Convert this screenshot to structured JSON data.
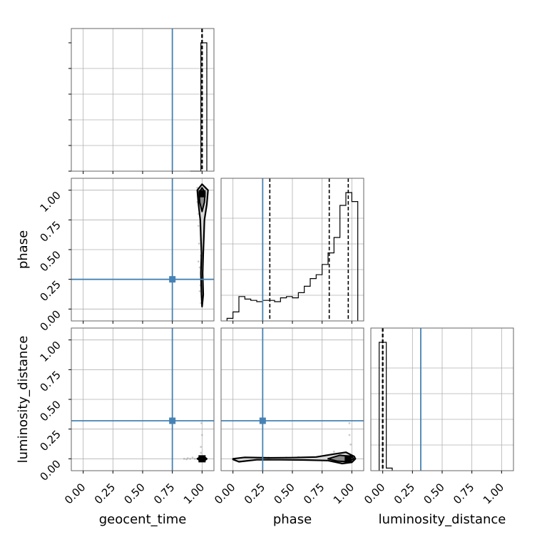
{
  "chart_data": {
    "type": "corner",
    "parameters": [
      "geocent_time",
      "phase",
      "luminosity_distance"
    ],
    "axis_labels": {
      "x": [
        "geocent_time",
        "phase",
        "luminosity_distance"
      ],
      "y": [
        "",
        "phase",
        "luminosity_distance"
      ]
    },
    "tick_labels": [
      "0.00",
      "0.25",
      "0.50",
      "0.75",
      "1.00"
    ],
    "range": [
      -0.1,
      1.1
    ],
    "grid": true,
    "truths": {
      "geocent_time": 0.75,
      "phase": 0.25,
      "luminosity_distance": 0.32
    },
    "truth_color": "#4682b4",
    "quantiles": {
      "geocent_time": [
        0.998,
        1.0,
        1.002
      ],
      "phase": [
        0.31,
        0.81,
        0.97
      ],
      "luminosity_distance": [
        -0.002,
        0.0,
        0.002
      ]
    },
    "histograms": {
      "geocent_time": {
        "edges": [
          0.9,
          0.99,
          1.04
        ],
        "counts": [
          0,
          1.0
        ]
      },
      "phase": {
        "edges": [
          -0.05,
          0.0,
          0.05,
          0.1,
          0.15,
          0.2,
          0.25,
          0.3,
          0.35,
          0.4,
          0.45,
          0.5,
          0.55,
          0.6,
          0.65,
          0.7,
          0.75,
          0.8,
          0.85,
          0.9,
          0.95,
          1.0,
          1.05
        ],
        "counts": [
          0.02,
          0.07,
          0.19,
          0.17,
          0.16,
          0.15,
          0.16,
          0.16,
          0.15,
          0.18,
          0.19,
          0.18,
          0.22,
          0.27,
          0.33,
          0.36,
          0.44,
          0.53,
          0.65,
          0.9,
          1.0,
          0.93
        ]
      },
      "luminosity_distance": {
        "edges": [
          -0.03,
          0.03,
          0.08
        ],
        "counts": [
          1.0,
          0.02
        ]
      }
    },
    "panels_2d": [
      {
        "x": "geocent_time",
        "y": "phase",
        "peak": [
          1.0,
          0.97
        ],
        "contour_outer": [
          [
            1.0,
            0.02
          ],
          [
            1.01,
            0.12
          ],
          [
            1.005,
            0.3
          ],
          [
            1.01,
            0.47
          ],
          [
            1.015,
            0.6
          ],
          [
            1.02,
            0.75
          ],
          [
            1.04,
            0.88
          ],
          [
            1.05,
            1.0
          ],
          [
            1.0,
            1.05
          ],
          [
            0.96,
            1.0
          ],
          [
            0.97,
            0.88
          ],
          [
            0.985,
            0.75
          ],
          [
            0.99,
            0.6
          ],
          [
            0.995,
            0.47
          ],
          [
            0.99,
            0.3
          ],
          [
            0.995,
            0.12
          ]
        ],
        "contour_inner": [
          [
            1.0,
            0.82
          ],
          [
            1.02,
            0.9
          ],
          [
            1.025,
            0.98
          ],
          [
            1.0,
            1.02
          ],
          [
            0.975,
            0.98
          ],
          [
            0.98,
            0.9
          ]
        ],
        "scatter": [
          [
            0.99,
            0.62
          ],
          [
            0.97,
            0.8
          ],
          [
            0.98,
            0.35
          ],
          [
            0.96,
            0.9
          ],
          [
            0.985,
            0.2
          ],
          [
            0.99,
            0.05
          ],
          [
            0.975,
            0.55
          ],
          [
            0.97,
            0.7
          ],
          [
            0.965,
            0.95
          ],
          [
            0.99,
            0.45
          ],
          [
            0.98,
            0.15
          ],
          [
            0.995,
            0.28
          ],
          [
            0.96,
            1.02
          ],
          [
            0.985,
            0.73
          ],
          [
            0.99,
            0.58
          ],
          [
            0.97,
            0.4
          ]
        ]
      },
      {
        "x": "geocent_time",
        "y": "luminosity_distance",
        "peak": [
          1.0,
          0.0
        ],
        "contour_outer": [
          [
            0.96,
            0.0
          ],
          [
            0.98,
            0.012
          ],
          [
            1.02,
            0.015
          ],
          [
            1.04,
            0.0
          ],
          [
            1.02,
            -0.015
          ],
          [
            0.98,
            -0.012
          ]
        ],
        "contour_inner": [
          [
            0.985,
            0.0
          ],
          [
            1.0,
            0.008
          ],
          [
            1.015,
            0.0
          ],
          [
            1.0,
            -0.008
          ]
        ],
        "scatter": [
          [
            0.9,
            0.0
          ],
          [
            0.88,
            0.005
          ],
          [
            0.85,
            0.0
          ],
          [
            0.92,
            0.01
          ],
          [
            0.99,
            0.05
          ],
          [
            0.99,
            0.1
          ],
          [
            1.0,
            0.2
          ],
          [
            0.995,
            0.3
          ],
          [
            0.94,
            0.0
          ],
          [
            0.87,
            -0.004
          ]
        ]
      },
      {
        "x": "phase",
        "y": "luminosity_distance",
        "peak": [
          0.97,
          0.0
        ],
        "contour_outer": [
          [
            0.0,
            0.0
          ],
          [
            0.1,
            0.012
          ],
          [
            0.3,
            0.008
          ],
          [
            0.5,
            0.01
          ],
          [
            0.7,
            0.015
          ],
          [
            0.85,
            0.04
          ],
          [
            0.95,
            0.055
          ],
          [
            1.02,
            0.02
          ],
          [
            1.03,
            0.0
          ],
          [
            1.0,
            -0.03
          ],
          [
            0.92,
            -0.04
          ],
          [
            0.8,
            -0.015
          ],
          [
            0.6,
            -0.01
          ],
          [
            0.4,
            -0.008
          ],
          [
            0.2,
            -0.008
          ],
          [
            0.05,
            -0.025
          ],
          [
            0.0,
            -0.005
          ]
        ],
        "contour_inner": [
          [
            0.8,
            0.0
          ],
          [
            0.9,
            0.03
          ],
          [
            1.0,
            0.02
          ],
          [
            1.015,
            0.0
          ],
          [
            0.97,
            -0.025
          ],
          [
            0.88,
            -0.02
          ]
        ],
        "scatter": [
          [
            0.1,
            0.0
          ],
          [
            0.3,
            0.01
          ],
          [
            0.45,
            0.01
          ],
          [
            0.62,
            0.005
          ],
          [
            0.72,
            0.0
          ],
          [
            0.98,
            0.3
          ],
          [
            0.98,
            0.2
          ],
          [
            0.99,
            0.12
          ],
          [
            0.2,
            -0.005
          ],
          [
            0.55,
            0.015
          ],
          [
            0.85,
            0.06
          ]
        ]
      }
    ]
  }
}
